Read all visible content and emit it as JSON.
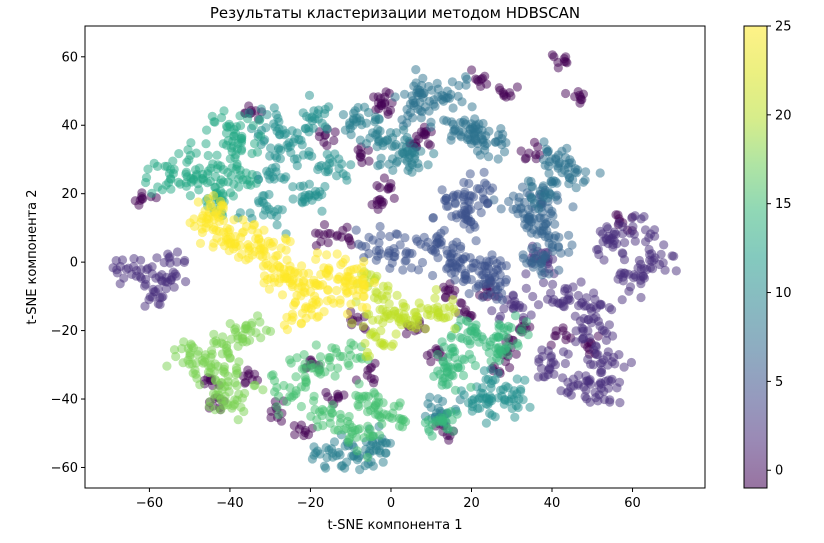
{
  "chart_data": {
    "type": "scatter",
    "title": "Результаты кластеризации методом HDBSCAN",
    "xlabel": "t-SNE компонента 1",
    "ylabel": "t-SNE компонента 2",
    "xlim": [
      -76,
      78
    ],
    "ylim": [
      -66,
      69
    ],
    "xticks": [
      -60,
      -40,
      -20,
      0,
      20,
      40,
      60
    ],
    "yticks": [
      -60,
      -40,
      -20,
      0,
      20,
      40,
      60
    ],
    "grid": false,
    "colormap": "viridis",
    "marker_alpha": 0.5,
    "colorbar": {
      "min": -1,
      "max": 25,
      "ticks": [
        0,
        5,
        10,
        15,
        20,
        25
      ]
    },
    "series_label_encoding": "point color = cluster label (-1 = noise)",
    "clusters": [
      {
        "label": -1,
        "color": "#440154",
        "centers": [
          [
            42,
            59
          ],
          [
            22,
            53
          ],
          [
            47,
            48
          ],
          [
            -2,
            45
          ],
          [
            -17,
            37
          ],
          [
            10,
            37
          ],
          [
            35,
            32
          ],
          [
            -7,
            31
          ],
          [
            -36,
            -34
          ],
          [
            -29,
            -43
          ],
          [
            -21,
            -49
          ],
          [
            -14,
            -39
          ],
          [
            -5,
            -33
          ],
          [
            -3,
            17
          ],
          [
            -17,
            8
          ],
          [
            -12,
            8
          ],
          [
            15,
            -9
          ],
          [
            31,
            -25
          ],
          [
            50,
            -25
          ],
          [
            42,
            -22
          ],
          [
            -35,
            44
          ],
          [
            0,
            22
          ],
          [
            -8,
            -18
          ],
          [
            6,
            -19
          ],
          [
            24,
            -8
          ],
          [
            18,
            -15
          ],
          [
            -45,
            -34
          ],
          [
            -43,
            -41
          ],
          [
            -61,
            18
          ],
          [
            57,
            12
          ],
          [
            33,
            -20
          ],
          [
            27,
            -30
          ],
          [
            -3,
            48
          ],
          [
            28,
            49
          ],
          [
            11,
            -27
          ],
          [
            13,
            -50
          ],
          [
            -20,
            -30
          ],
          [
            6,
            35
          ]
        ]
      },
      {
        "label": 1,
        "color": "#472d7b",
        "centers": [
          [
            -64,
            -3
          ],
          [
            -58,
            -8
          ],
          [
            -55,
            -2
          ],
          [
            60,
            -5
          ],
          [
            65,
            0
          ],
          [
            55,
            5
          ],
          [
            60,
            10
          ],
          [
            50,
            -20
          ],
          [
            54,
            -29
          ],
          [
            47,
            -36
          ],
          [
            53,
            -38
          ],
          [
            43,
            -10
          ],
          [
            50,
            -14
          ],
          [
            40,
            -30
          ],
          [
            30,
            -12
          ],
          [
            38,
            1
          ]
        ]
      },
      {
        "label": 4,
        "color": "#3b528b",
        "centers": [
          [
            15,
            18
          ],
          [
            18,
            13
          ],
          [
            23,
            20
          ],
          [
            12,
            5
          ],
          [
            16,
            0
          ],
          [
            5,
            3
          ],
          [
            -3,
            5
          ],
          [
            20,
            -2
          ],
          [
            24,
            -6
          ],
          [
            26,
            -3
          ]
        ]
      },
      {
        "label": 6,
        "color": "#33638d",
        "centers": [
          [
            35,
            11
          ],
          [
            40,
            6
          ],
          [
            32,
            17
          ],
          [
            38,
            17
          ],
          [
            36,
            0
          ]
        ]
      },
      {
        "label": 7,
        "color": "#2c728e",
        "centers": [
          [
            8,
            49
          ],
          [
            15,
            50
          ],
          [
            6,
            45
          ],
          [
            17,
            39
          ],
          [
            20,
            38
          ],
          [
            26,
            35
          ],
          [
            40,
            30
          ],
          [
            45,
            26
          ],
          [
            37,
            21
          ]
        ]
      },
      {
        "label": 8,
        "color": "#287d8e",
        "centers": [
          [
            -8,
            41
          ],
          [
            -2,
            38
          ],
          [
            1,
            33
          ],
          [
            5,
            30
          ],
          [
            -15,
            -56
          ],
          [
            -8,
            -56
          ],
          [
            -3,
            -54
          ],
          [
            12,
            -43
          ]
        ]
      },
      {
        "label": 11,
        "color": "#21908d",
        "centers": [
          [
            -30,
            40
          ],
          [
            -25,
            35
          ],
          [
            -20,
            43
          ],
          [
            -15,
            28
          ],
          [
            -20,
            19
          ],
          [
            -28,
            27
          ],
          [
            -32,
            16
          ],
          [
            25,
            -37
          ],
          [
            30,
            -40
          ],
          [
            22,
            -42
          ]
        ]
      },
      {
        "label": 14,
        "color": "#22a884",
        "centers": [
          [
            -40,
            40
          ],
          [
            -38,
            34
          ],
          [
            -45,
            25
          ],
          [
            -38,
            25
          ],
          [
            -55,
            25
          ],
          [
            -50,
            28
          ],
          [
            -43,
            18
          ]
        ]
      },
      {
        "label": 17,
        "color": "#35b779",
        "centers": [
          [
            30,
            -20
          ],
          [
            25,
            -25
          ],
          [
            20,
            -20
          ],
          [
            15,
            -28
          ],
          [
            12,
            -47
          ],
          [
            15,
            -33
          ]
        ]
      },
      {
        "label": 19,
        "color": "#44bf70",
        "centers": [
          [
            -20,
            -30
          ],
          [
            -12,
            -28
          ],
          [
            -25,
            -38
          ],
          [
            -15,
            -45
          ],
          [
            -5,
            -40
          ],
          [
            0,
            -45
          ],
          [
            -8,
            -50
          ]
        ]
      },
      {
        "label": 21,
        "color": "#7ad151",
        "centers": [
          [
            -40,
            -25
          ],
          [
            -45,
            -30
          ],
          [
            -50,
            -28
          ],
          [
            -38,
            -35
          ],
          [
            -40,
            -40
          ],
          [
            -35,
            -20
          ]
        ]
      },
      {
        "label": 23,
        "color": "#bddf26",
        "centers": [
          [
            0,
            -15
          ],
          [
            5,
            -16
          ],
          [
            12,
            -15
          ],
          [
            -5,
            -8
          ],
          [
            -3,
            -22
          ]
        ]
      },
      {
        "label": 25,
        "color": "#fde725",
        "centers": [
          [
            -45,
            10
          ],
          [
            -40,
            5
          ],
          [
            -35,
            8
          ],
          [
            -30,
            5
          ],
          [
            -25,
            -5
          ],
          [
            -20,
            -8
          ],
          [
            -15,
            -2
          ],
          [
            -22,
            -15
          ],
          [
            -10,
            -10
          ],
          [
            -8,
            -5
          ],
          [
            -45,
            15
          ],
          [
            -28,
            -2
          ]
        ]
      }
    ]
  }
}
